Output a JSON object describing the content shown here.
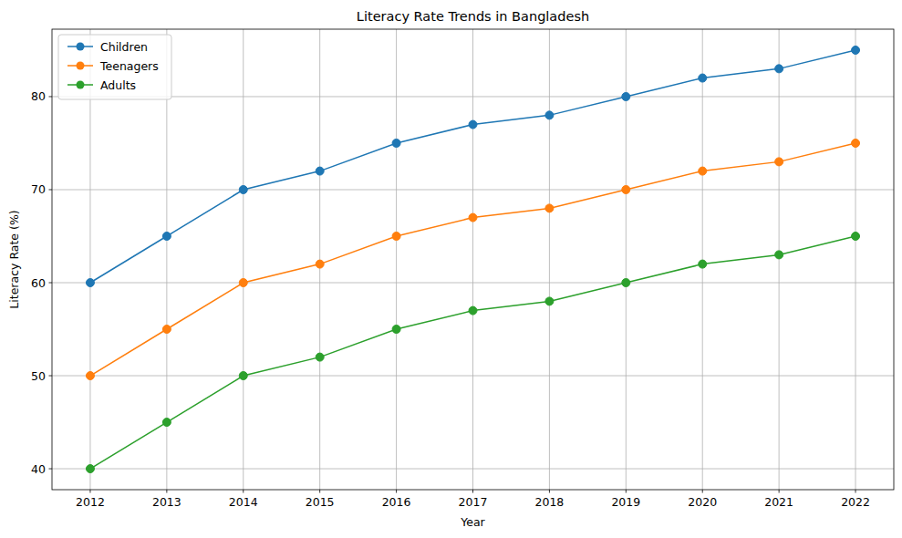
{
  "chart_data": {
    "type": "line",
    "title": "Literacy Rate Trends in Bangladesh",
    "x_label": "Year",
    "y_label": "Literacy Rate (%)",
    "x": [
      2012,
      2013,
      2014,
      2015,
      2016,
      2017,
      2018,
      2019,
      2020,
      2021,
      2022
    ],
    "series": [
      {
        "name": "Children",
        "color": "#1f77b4",
        "marker": "o",
        "line_style": "solid",
        "values": [
          60,
          65,
          70,
          72,
          75,
          77,
          78,
          80,
          82,
          83,
          85
        ]
      },
      {
        "name": "Teenagers",
        "color": "#ff7f0e",
        "marker": "o",
        "line_style": "solid",
        "values": [
          50,
          55,
          60,
          62,
          65,
          67,
          68,
          70,
          72,
          73,
          75
        ]
      },
      {
        "name": "Adults",
        "color": "#2ca02c",
        "marker": "o",
        "line_style": "solid",
        "values": [
          40,
          45,
          50,
          52,
          55,
          57,
          58,
          60,
          62,
          63,
          65
        ]
      }
    ],
    "xlim": [
      2011.5,
      2022.5
    ],
    "xticks": [
      2012,
      2013,
      2014,
      2015,
      2016,
      2017,
      2018,
      2019,
      2020,
      2021,
      2022
    ],
    "ylim": [
      37.75,
      87.25
    ],
    "yticks": [
      40,
      50,
      60,
      70,
      80
    ],
    "grid": true,
    "legend": "upper left"
  }
}
